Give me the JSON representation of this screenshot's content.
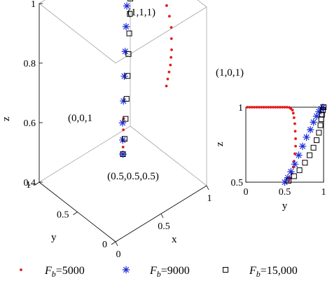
{
  "chart_data": [
    {
      "type": "scatter",
      "projection": "3d",
      "title": "",
      "xlabel": "x",
      "ylabel": "y",
      "zlabel": "z",
      "xlim": [
        0,
        1
      ],
      "ylim": [
        0,
        1
      ],
      "zlim": [
        0.4,
        1
      ],
      "xticks": [
        "0",
        "0.5",
        "1"
      ],
      "yticks": [
        "0",
        "0.5",
        "1"
      ],
      "zticks": [
        "0.4",
        "0.6",
        "0.8",
        "1"
      ],
      "annotations": [
        {
          "text": "(1,1,1)",
          "point": [
            1,
            1,
            1
          ]
        },
        {
          "text": "(1,0,1)",
          "point": [
            1,
            0,
            1
          ]
        },
        {
          "text": "(0,0,1",
          "point": [
            0,
            0,
            1
          ]
        },
        {
          "text": "(0.5,0.5,0.5)",
          "point": [
            0.5,
            0.5,
            0.5
          ]
        }
      ],
      "series": [
        {
          "label_prefix": "F",
          "label_sub": "b",
          "label_value": "=5000",
          "marker": "dot",
          "color": "#e31a1c",
          "points": [
            [
              0.5,
              0.5,
              0.5
            ],
            [
              0.51,
              0.51,
              0.52
            ],
            [
              0.52,
              0.52,
              0.54
            ],
            [
              0.53,
              0.53,
              0.57
            ],
            [
              0.55,
              0.55,
              0.6
            ],
            [
              0.6,
              0.05,
              0.8
            ],
            [
              0.64,
              0.08,
              0.81
            ],
            [
              0.68,
              0.11,
              0.82
            ],
            [
              0.72,
              0.14,
              0.83
            ],
            [
              0.76,
              0.18,
              0.84
            ],
            [
              0.8,
              0.22,
              0.85
            ],
            [
              0.84,
              0.27,
              0.87
            ],
            [
              0.88,
              0.32,
              0.89
            ],
            [
              0.91,
              0.38,
              0.91
            ],
            [
              0.93,
              0.44,
              0.93
            ],
            [
              0.95,
              0.5,
              0.95
            ],
            [
              0.96,
              0.56,
              0.97
            ],
            [
              0.96,
              0.62,
              0.98
            ],
            [
              0.95,
              0.68,
              0.99
            ],
            [
              0.93,
              0.74,
              0.99
            ],
            [
              0.91,
              0.8,
              1.0
            ],
            [
              0.89,
              0.86,
              1.0
            ],
            [
              0.87,
              0.92,
              1.0
            ],
            [
              0.88,
              0.97,
              1.0
            ],
            [
              0.9,
              1.0,
              1.0
            ]
          ]
        },
        {
          "label_prefix": "F",
          "label_sub": "b",
          "label_value": "=9000",
          "marker": "asterisk",
          "color": "#1f2fd6",
          "points": [
            [
              0.5,
              0.5,
              0.5
            ],
            [
              0.54,
              0.55,
              0.53
            ],
            [
              0.58,
              0.6,
              0.57
            ],
            [
              0.64,
              0.66,
              0.62
            ],
            [
              0.7,
              0.72,
              0.68
            ],
            [
              0.76,
              0.78,
              0.74
            ],
            [
              0.82,
              0.84,
              0.8
            ],
            [
              0.87,
              0.89,
              0.85
            ],
            [
              0.91,
              0.93,
              0.9
            ],
            [
              0.94,
              0.96,
              0.94
            ],
            [
              0.97,
              0.98,
              0.97
            ],
            [
              0.99,
              0.99,
              0.99
            ],
            [
              1.0,
              1.0,
              1.0
            ]
          ]
        },
        {
          "label_prefix": "F",
          "label_sub": "b",
          "label_value": "=15,000",
          "marker": "square",
          "color": "#000000",
          "points": [
            [
              0.5,
              0.5,
              0.5
            ],
            [
              0.56,
              0.55,
              0.53
            ],
            [
              0.63,
              0.62,
              0.57
            ],
            [
              0.7,
              0.69,
              0.61
            ],
            [
              0.77,
              0.76,
              0.66
            ],
            [
              0.83,
              0.82,
              0.71
            ],
            [
              0.88,
              0.87,
              0.76
            ],
            [
              0.92,
              0.91,
              0.81
            ],
            [
              0.95,
              0.94,
              0.85
            ],
            [
              0.97,
              0.96,
              0.89
            ],
            [
              0.98,
              0.98,
              0.93
            ],
            [
              0.99,
              0.99,
              0.96
            ],
            [
              1.0,
              1.0,
              0.98
            ],
            [
              1.0,
              1.0,
              1.0
            ]
          ]
        }
      ]
    },
    {
      "type": "scatter",
      "title": "",
      "xlabel": "y",
      "ylabel": "z",
      "xlim": [
        0,
        1
      ],
      "ylim": [
        0.5,
        1
      ],
      "xticks": [
        "0",
        "0.5",
        "1"
      ],
      "yticks": [
        "0.5",
        "1"
      ],
      "series": [
        {
          "name": "F_b=5000",
          "marker": "dot",
          "color": "#e31a1c",
          "x": [
            0.02,
            0.05,
            0.08,
            0.11,
            0.14,
            0.17,
            0.2,
            0.23,
            0.26,
            0.29,
            0.32,
            0.35,
            0.38,
            0.41,
            0.44,
            0.47,
            0.5,
            0.53,
            0.56,
            0.58,
            0.6,
            0.61,
            0.62,
            0.63,
            0.635,
            0.64,
            0.64,
            0.63,
            0.62,
            0.61,
            0.59,
            0.57,
            0.55
          ],
          "y": [
            1.0,
            1.0,
            1.0,
            1.0,
            1.0,
            1.0,
            1.0,
            1.0,
            1.0,
            1.0,
            1.0,
            1.0,
            1.0,
            1.0,
            1.0,
            1.0,
            1.0,
            1.0,
            0.998,
            0.99,
            0.98,
            0.96,
            0.93,
            0.89,
            0.84,
            0.79,
            0.74,
            0.69,
            0.64,
            0.6,
            0.56,
            0.53,
            0.51
          ]
        },
        {
          "name": "F_b=9000",
          "marker": "asterisk",
          "color": "#1f2fd6",
          "x": [
            0.5,
            0.54,
            0.58,
            0.63,
            0.68,
            0.73,
            0.78,
            0.83,
            0.87,
            0.91,
            0.94,
            0.97,
            0.99
          ],
          "y": [
            0.5,
            0.53,
            0.57,
            0.62,
            0.68,
            0.74,
            0.8,
            0.85,
            0.9,
            0.94,
            0.97,
            0.99,
            1.0
          ]
        },
        {
          "name": "F_b=15,000",
          "marker": "square",
          "color": "#000000",
          "x": [
            0.55,
            0.62,
            0.69,
            0.76,
            0.82,
            0.87,
            0.91,
            0.94,
            0.96,
            0.97,
            0.98,
            0.99,
            1.0
          ],
          "y": [
            0.51,
            0.54,
            0.58,
            0.63,
            0.68,
            0.73,
            0.78,
            0.83,
            0.88,
            0.92,
            0.95,
            0.98,
            1.0
          ]
        }
      ]
    }
  ]
}
